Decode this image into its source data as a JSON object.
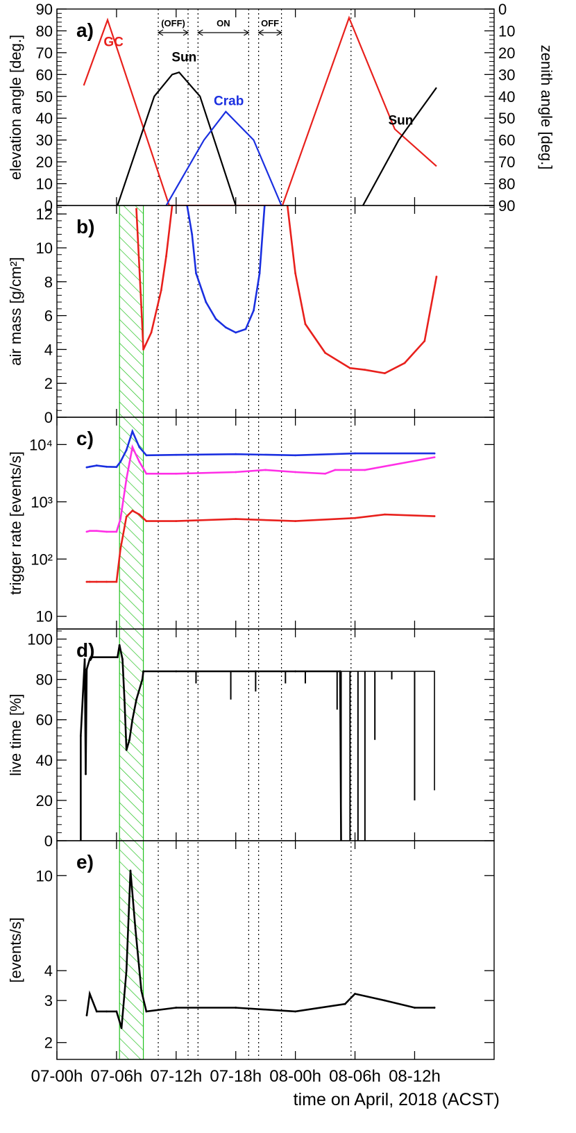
{
  "x_axis": {
    "title": "time on April, 2018 (ACST)",
    "range_hours": [
      0,
      44
    ],
    "ticks": [
      {
        "value": 0,
        "label": "07-00h"
      },
      {
        "value": 6,
        "label": "07-06h"
      },
      {
        "value": 12,
        "label": "07-12h"
      },
      {
        "value": 18,
        "label": "07-18h"
      },
      {
        "value": 24,
        "label": "08-00h"
      },
      {
        "value": 30,
        "label": "08-06h"
      },
      {
        "value": 36,
        "label": "08-12h"
      }
    ]
  },
  "colors": {
    "gc": "#e8201c",
    "crab": "#1a2fe0",
    "sun": "#000000",
    "magenta": "#ff2fe6",
    "hatch": "#22c21e"
  },
  "hatched_band_hours": [
    6.3,
    8.7
  ],
  "vertical_lines_hours": [
    10.2,
    13.2,
    14.2,
    19.3,
    20.3,
    22.6,
    29.6
  ],
  "period_labels": [
    {
      "label": "(OFF)",
      "from": 10.2,
      "to": 13.2
    },
    {
      "label": "ON",
      "from": 14.2,
      "to": 19.3
    },
    {
      "label": "OFF",
      "from": 20.3,
      "to": 22.6
    }
  ],
  "chart_data": [
    {
      "panel": "a)",
      "type": "line",
      "ylabel": "elevation angle [deg.]",
      "y2label": "zenith angle [deg.]",
      "ylim": [
        0,
        90
      ],
      "yticks": [
        0,
        10,
        20,
        30,
        40,
        50,
        60,
        70,
        80,
        90
      ],
      "y2ticks": [
        90,
        80,
        70,
        60,
        50,
        40,
        30,
        20,
        10,
        0
      ],
      "series": [
        {
          "name": "GC",
          "color": "#e8201c",
          "label_pos": [
            5.7,
            73
          ],
          "x": [
            2.7,
            5.1,
            11.3,
            22.7,
            29.4,
            34.0,
            38.2
          ],
          "y": [
            55,
            85,
            0,
            0,
            86,
            35,
            18
          ]
        },
        {
          "name": "Sun",
          "color": "#000000",
          "label_pos": [
            12.8,
            66
          ],
          "x": [
            6.1,
            9.8,
            11.6,
            12.3,
            14.4,
            18.0
          ],
          "y": [
            0,
            50,
            60,
            61,
            50,
            0
          ]
        },
        {
          "name": "Crab",
          "color": "#1a2fe0",
          "label_pos": [
            17.3,
            46
          ],
          "x": [
            11.0,
            14.8,
            17.0,
            19.8,
            22.6
          ],
          "y": [
            0,
            30,
            43,
            30,
            0
          ]
        },
        {
          "name": "Sun",
          "color": "#000000",
          "label_pos": [
            34.6,
            37
          ],
          "x": [
            30.8,
            34.4,
            38.2
          ],
          "y": [
            0,
            30,
            54
          ]
        }
      ]
    },
    {
      "panel": "b)",
      "type": "line",
      "ylabel": "air mass [g/cm²]",
      "ylim": [
        0,
        12.5
      ],
      "yticks": [
        0,
        2,
        4,
        6,
        8,
        10,
        12
      ],
      "series": [
        {
          "name": "GC",
          "color": "#e8201c",
          "x": [
            8.0,
            8.5,
            8.7,
            9.5,
            10.5,
            11.0,
            11.6
          ],
          "y": [
            12.3,
            6.5,
            4.0,
            5.0,
            7.5,
            9.5,
            12.5
          ]
        },
        {
          "name": "Crab",
          "color": "#1a2fe0",
          "x": [
            13.1,
            13.6,
            14.0,
            15.0,
            16.0,
            17.0,
            18.0,
            19.0,
            19.8,
            20.4,
            20.9
          ],
          "y": [
            12.5,
            10.8,
            8.5,
            6.8,
            5.8,
            5.3,
            5.0,
            5.2,
            6.3,
            8.5,
            12.5
          ]
        },
        {
          "name": "GC",
          "color": "#e8201c",
          "x": [
            23.2,
            24.0,
            25.0,
            27.0,
            29.5,
            31.0,
            33.0,
            35.0,
            37.0,
            38.2
          ],
          "y": [
            12.5,
            8.5,
            5.5,
            3.8,
            2.9,
            2.8,
            2.6,
            3.2,
            4.5,
            8.3
          ]
        }
      ]
    },
    {
      "panel": "c)",
      "type": "line",
      "ylabel": "trigger rate [events/s]",
      "yscale": "log",
      "ylim": [
        6,
        30000
      ],
      "yticks": [
        {
          "value": 10,
          "label": "10"
        },
        {
          "value": 100,
          "label": "10²"
        },
        {
          "value": 1000,
          "label": "10³"
        },
        {
          "value": 10000,
          "label": "10⁴"
        }
      ],
      "series": [
        {
          "name": "blue",
          "color": "#1a2fe0",
          "x": [
            3.0,
            3.3,
            4.0,
            5.0,
            6.0,
            6.4,
            7.0,
            7.6,
            8.3,
            9.0,
            12,
            18,
            24,
            30,
            38.0
          ],
          "y": [
            4000,
            4100,
            4300,
            4100,
            4050,
            5000,
            8000,
            17000,
            9000,
            6500,
            6600,
            6800,
            6500,
            7000,
            7000
          ]
        },
        {
          "name": "magenta",
          "color": "#ff2fe6",
          "x": [
            3.0,
            3.3,
            4.0,
            5.0,
            6.0,
            6.4,
            7.0,
            7.6,
            8.3,
            9.0,
            12,
            18,
            21,
            24,
            27,
            28,
            31,
            38.0
          ],
          "y": [
            300,
            310,
            310,
            300,
            300,
            500,
            2500,
            9000,
            5000,
            3100,
            3100,
            3300,
            3600,
            3300,
            3100,
            3600,
            3600,
            6000
          ]
        },
        {
          "name": "red",
          "color": "#e8201c",
          "x": [
            3.0,
            3.3,
            4.0,
            5.0,
            6.0,
            6.4,
            7.0,
            7.6,
            8.3,
            9.0,
            12,
            18,
            24,
            30,
            33,
            38.0
          ],
          "y": [
            40,
            40,
            40,
            40,
            40,
            150,
            550,
            700,
            600,
            460,
            460,
            500,
            460,
            520,
            600,
            560
          ]
        }
      ]
    },
    {
      "panel": "d)",
      "type": "line",
      "ylabel": "live time [%]",
      "ylim": [
        0,
        105
      ],
      "yticks": [
        0,
        20,
        40,
        60,
        80,
        100
      ],
      "series": [
        {
          "name": "live time",
          "color": "#000000",
          "x": [
            2.4,
            2.4,
            2.8,
            2.9,
            3.0,
            3.3,
            3.4,
            6.1,
            6.3,
            6.6,
            6.8,
            7.0,
            7.3,
            7.6,
            8.0,
            8.6,
            8.7,
            12,
            20,
            24,
            28.5,
            28.6
          ],
          "y": [
            0,
            52,
            90,
            33,
            85,
            90,
            91,
            91,
            97,
            90,
            70,
            45,
            50,
            60,
            70,
            80,
            84,
            84,
            84,
            84,
            84,
            0
          ]
        }
      ]
    },
    {
      "panel": "e)",
      "type": "line",
      "ylabel": "[events/s]",
      "yscale": "log",
      "ylim": [
        1.7,
        14
      ],
      "yticks": [
        2,
        3,
        4,
        10
      ],
      "series": [
        {
          "name": "rate",
          "color": "#000000",
          "x": [
            3.0,
            3.3,
            4.0,
            5.0,
            6.0,
            6.5,
            7.0,
            7.4,
            7.9,
            8.5,
            9.0,
            12,
            18,
            24,
            29,
            30,
            33,
            36,
            38.0
          ],
          "y": [
            2.6,
            3.2,
            2.7,
            2.7,
            2.7,
            2.3,
            4.0,
            10.5,
            6.0,
            3.3,
            2.7,
            2.8,
            2.8,
            2.7,
            2.9,
            3.2,
            3.0,
            2.8,
            2.8
          ]
        }
      ]
    }
  ]
}
